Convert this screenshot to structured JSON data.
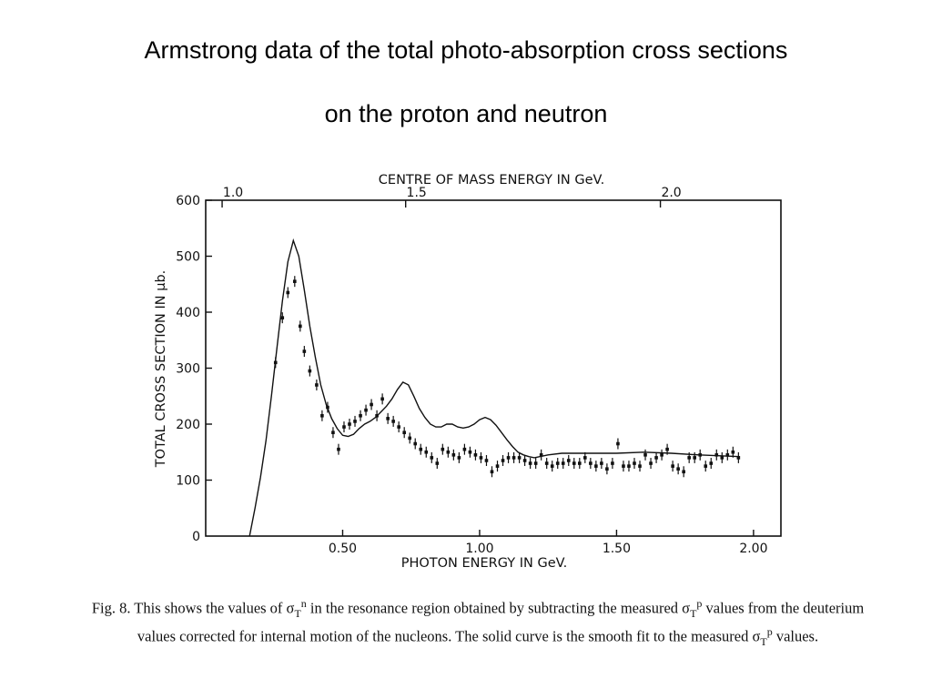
{
  "slide": {
    "title_line1": "Armstrong data of the total photo-absorption cross sections",
    "title_line2": "on the proton and neutron"
  },
  "caption": {
    "fig_label": "Fig. 8.",
    "text_a": "This shows the values of σ",
    "sub_T": "T",
    "sup_n": "n",
    "text_b": "in the resonance region obtained by subtracting the measured σ",
    "sup_p": "p",
    "text_c": "values from the deuterium values corrected for internal motion of the nucleons. The solid curve is the smooth fit to the measured σ",
    "text_d": "values."
  },
  "chart_data": {
    "type": "scatter",
    "title": "",
    "xlabel": "PHOTON ENERGY  IN GeV.",
    "ylabel": "TOTAL CROSS SECTION IN μb.",
    "top_xlabel": "CENTRE OF MASS ENERGY IN GeV.",
    "xlim": [
      0.0,
      2.1
    ],
    "ylim": [
      0,
      600
    ],
    "x_ticks": [
      0.5,
      1.0,
      1.5,
      2.0
    ],
    "x_tick_labels": [
      "0.50",
      "1.00",
      "1.50",
      "2.00"
    ],
    "y_ticks": [
      0,
      100,
      200,
      300,
      400,
      500,
      600
    ],
    "y_tick_labels": [
      "0",
      "100",
      "200",
      "300",
      "400",
      "500",
      "600"
    ],
    "top_ticks": [
      0.06,
      0.73,
      1.66
    ],
    "top_tick_labels": [
      "1.0",
      "1.5",
      "2.0"
    ],
    "grid": false,
    "series": [
      {
        "kind": "points",
        "x": [
          0.255,
          0.28,
          0.3,
          0.325,
          0.345,
          0.36,
          0.38,
          0.405,
          0.425,
          0.445,
          0.465,
          0.485,
          0.505,
          0.525,
          0.545,
          0.565,
          0.585,
          0.605,
          0.625,
          0.645,
          0.665,
          0.685,
          0.705,
          0.725,
          0.745,
          0.765,
          0.785,
          0.805,
          0.825,
          0.845,
          0.865,
          0.885,
          0.905,
          0.925,
          0.945,
          0.965,
          0.985,
          1.005,
          1.025,
          1.045,
          1.065,
          1.085,
          1.105,
          1.125,
          1.145,
          1.165,
          1.185,
          1.205,
          1.225,
          1.245,
          1.265,
          1.285,
          1.305,
          1.325,
          1.345,
          1.365,
          1.385,
          1.405,
          1.425,
          1.445,
          1.465,
          1.485,
          1.505,
          1.525,
          1.545,
          1.565,
          1.585,
          1.605,
          1.625,
          1.645,
          1.665,
          1.685,
          1.705,
          1.725,
          1.745,
          1.765,
          1.785,
          1.805,
          1.825,
          1.845,
          1.865,
          1.885,
          1.905,
          1.925,
          1.945
        ],
        "y": [
          310,
          390,
          435,
          455,
          375,
          330,
          295,
          270,
          215,
          230,
          185,
          155,
          195,
          200,
          205,
          215,
          225,
          235,
          215,
          245,
          210,
          205,
          195,
          185,
          175,
          165,
          155,
          150,
          140,
          130,
          155,
          150,
          145,
          140,
          155,
          150,
          145,
          140,
          135,
          115,
          125,
          135,
          140,
          140,
          140,
          135,
          130,
          130,
          145,
          130,
          125,
          130,
          130,
          135,
          130,
          130,
          140,
          130,
          125,
          130,
          120,
          130,
          165,
          125,
          125,
          130,
          125,
          145,
          130,
          140,
          145,
          155,
          125,
          120,
          115,
          140,
          140,
          145,
          125,
          130,
          145,
          140,
          145,
          150,
          140
        ]
      },
      {
        "kind": "curve",
        "x": [
          0.16,
          0.18,
          0.2,
          0.22,
          0.24,
          0.26,
          0.28,
          0.3,
          0.32,
          0.34,
          0.36,
          0.38,
          0.4,
          0.42,
          0.44,
          0.46,
          0.48,
          0.5,
          0.52,
          0.54,
          0.56,
          0.58,
          0.6,
          0.62,
          0.64,
          0.66,
          0.68,
          0.7,
          0.72,
          0.74,
          0.76,
          0.78,
          0.8,
          0.82,
          0.84,
          0.86,
          0.88,
          0.9,
          0.92,
          0.94,
          0.96,
          0.98,
          1.0,
          1.02,
          1.04,
          1.06,
          1.08,
          1.1,
          1.12,
          1.14,
          1.16,
          1.18,
          1.2,
          1.25,
          1.3,
          1.4,
          1.5,
          1.6,
          1.7,
          1.8,
          1.9,
          1.95
        ],
        "y": [
          0,
          50,
          105,
          170,
          250,
          335,
          420,
          490,
          528,
          500,
          440,
          375,
          320,
          270,
          235,
          210,
          192,
          180,
          178,
          182,
          192,
          200,
          205,
          212,
          222,
          232,
          245,
          262,
          275,
          270,
          250,
          228,
          212,
          200,
          195,
          195,
          200,
          200,
          195,
          193,
          195,
          200,
          208,
          212,
          208,
          198,
          185,
          172,
          160,
          150,
          145,
          142,
          140,
          145,
          148,
          148,
          148,
          150,
          148,
          145,
          143,
          142
        ]
      }
    ]
  }
}
